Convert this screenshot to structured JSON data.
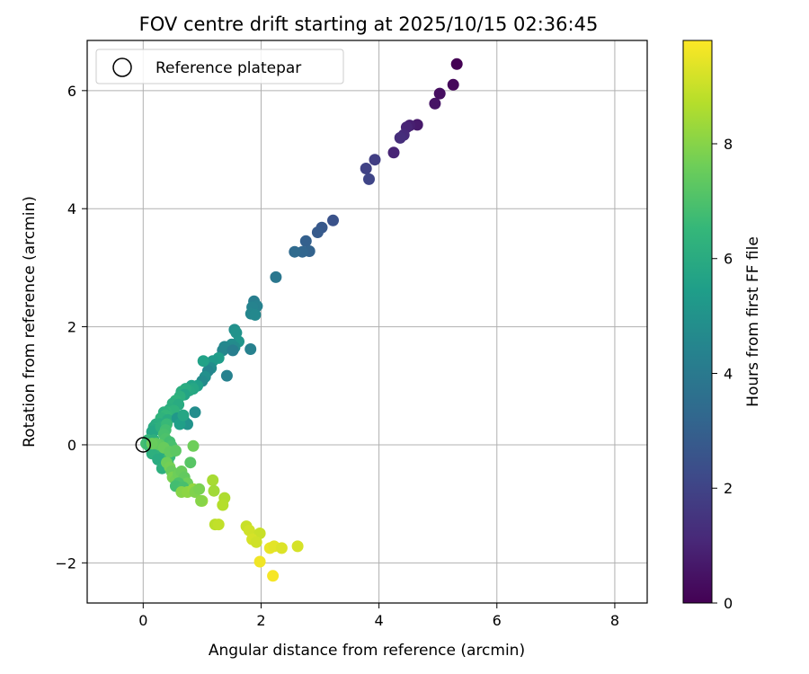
{
  "chart_data": {
    "type": "scatter",
    "title": "FOV centre drift starting at 2025/10/15 02:36:45",
    "xlabel": "Angular distance from reference (arcmin)",
    "ylabel": "Rotation from reference (arcmin)",
    "xlim": [
      -0.95,
      8.55
    ],
    "ylim": [
      -2.68,
      6.85
    ],
    "xticks": [
      0,
      2,
      4,
      6,
      8
    ],
    "xtick_labels": [
      "0",
      "2",
      "4",
      "6",
      "8"
    ],
    "yticks": [
      -2,
      0,
      2,
      4,
      6
    ],
    "ytick_labels": [
      "−2",
      "0",
      "2",
      "4",
      "6"
    ],
    "grid": true,
    "legend": {
      "position": "top-left",
      "entries": [
        "Reference platepar"
      ]
    },
    "reference_point": {
      "x": 0,
      "y": 0
    },
    "colorbar": {
      "label": "Hours from first FF file",
      "range": [
        0,
        9.8
      ],
      "ticks": [
        0,
        2,
        4,
        6,
        8
      ],
      "tick_labels": [
        "0",
        "2",
        "4",
        "6",
        "8"
      ],
      "colormap": "viridis",
      "stops": [
        "#440154",
        "#482878",
        "#3e4989",
        "#31688e",
        "#26828e",
        "#1f9e89",
        "#35b779",
        "#6ece58",
        "#b5de2b",
        "#fde725"
      ]
    },
    "points": [
      [
        5.32,
        6.45,
        0.0
      ],
      [
        5.26,
        6.1,
        0.2
      ],
      [
        5.03,
        5.95,
        0.35
      ],
      [
        4.95,
        5.78,
        0.5
      ],
      [
        4.65,
        5.42,
        0.7
      ],
      [
        4.52,
        5.41,
        0.85
      ],
      [
        4.47,
        5.38,
        1.0
      ],
      [
        4.42,
        5.25,
        1.15
      ],
      [
        4.36,
        5.2,
        1.3
      ],
      [
        4.25,
        4.95,
        1.0
      ],
      [
        3.93,
        4.83,
        1.8
      ],
      [
        3.78,
        4.68,
        1.95
      ],
      [
        3.83,
        4.5,
        2.05
      ],
      [
        3.22,
        3.8,
        2.5
      ],
      [
        3.03,
        3.68,
        2.7
      ],
      [
        2.96,
        3.6,
        2.8
      ],
      [
        2.76,
        3.45,
        3.0
      ],
      [
        2.82,
        3.28,
        3.1
      ],
      [
        2.7,
        3.27,
        3.2
      ],
      [
        2.57,
        3.27,
        3.4
      ],
      [
        2.25,
        2.84,
        3.9
      ],
      [
        1.88,
        2.43,
        4.2
      ],
      [
        1.93,
        2.35,
        4.3
      ],
      [
        1.85,
        2.33,
        4.4
      ],
      [
        1.83,
        2.22,
        4.5
      ],
      [
        1.9,
        2.2,
        4.6
      ],
      [
        1.82,
        1.62,
        4.3
      ],
      [
        1.55,
        1.95,
        4.9
      ],
      [
        1.58,
        1.9,
        5.0
      ],
      [
        1.62,
        1.75,
        5.1
      ],
      [
        1.5,
        1.7,
        4.8
      ],
      [
        1.55,
        1.65,
        4.7
      ],
      [
        1.38,
        1.66,
        4.6
      ],
      [
        1.35,
        1.6,
        4.5
      ],
      [
        1.52,
        1.6,
        4.2
      ],
      [
        1.28,
        1.47,
        5.4
      ],
      [
        1.18,
        1.42,
        5.3
      ],
      [
        1.15,
        1.3,
        4.8
      ],
      [
        1.1,
        1.25,
        4.5
      ],
      [
        1.42,
        1.17,
        4.3
      ],
      [
        1.02,
        1.42,
        5.6
      ],
      [
        1.05,
        1.15,
        4.9
      ],
      [
        1.0,
        1.08,
        4.7
      ],
      [
        0.92,
        1.0,
        5.5
      ],
      [
        0.82,
        1.0,
        5.6
      ],
      [
        0.85,
        0.95,
        5.8
      ],
      [
        0.78,
        0.92,
        5.9
      ],
      [
        0.72,
        0.95,
        6.0
      ],
      [
        0.65,
        0.9,
        6.1
      ],
      [
        0.7,
        0.85,
        5.7
      ],
      [
        0.62,
        0.82,
        6.2
      ],
      [
        0.55,
        0.75,
        6.3
      ],
      [
        0.5,
        0.7,
        6.2
      ],
      [
        0.6,
        0.68,
        6.0
      ],
      [
        0.45,
        0.6,
        6.1
      ],
      [
        0.52,
        0.58,
        6.3
      ],
      [
        0.4,
        0.55,
        6.4
      ],
      [
        0.35,
        0.55,
        6.2
      ],
      [
        0.38,
        0.5,
        6.5
      ],
      [
        0.3,
        0.45,
        6.3
      ],
      [
        0.42,
        0.42,
        6.0
      ],
      [
        0.58,
        0.45,
        5.2
      ],
      [
        0.7,
        0.4,
        5.4
      ],
      [
        0.75,
        0.35,
        5.0
      ],
      [
        0.88,
        0.55,
        4.8
      ],
      [
        0.62,
        0.35,
        5.5
      ],
      [
        0.68,
        0.5,
        5.8
      ],
      [
        0.28,
        0.35,
        6.0
      ],
      [
        0.22,
        0.35,
        6.1
      ],
      [
        0.18,
        0.3,
        6.0
      ],
      [
        0.25,
        0.28,
        6.3
      ],
      [
        0.2,
        0.25,
        5.9
      ],
      [
        0.15,
        0.22,
        5.8
      ],
      [
        0.3,
        0.3,
        6.2
      ],
      [
        0.4,
        0.35,
        6.6
      ],
      [
        0.38,
        0.25,
        6.8
      ],
      [
        0.35,
        0.18,
        6.9
      ],
      [
        0.38,
        0.1,
        7.0
      ],
      [
        0.4,
        0.0,
        7.1
      ],
      [
        0.45,
        0.05,
        6.8
      ],
      [
        0.48,
        -0.02,
        6.9
      ],
      [
        0.08,
        0.08,
        6.5
      ],
      [
        0.05,
        0.02,
        6.8
      ],
      [
        0.1,
        -0.02,
        6.7
      ],
      [
        0.12,
        0.05,
        6.6
      ],
      [
        0.18,
        0.08,
        6.2
      ],
      [
        0.2,
        -0.05,
        6.4
      ],
      [
        0.25,
        -0.1,
        6.3
      ],
      [
        0.15,
        -0.15,
        6.2
      ],
      [
        0.35,
        -0.2,
        6.1
      ],
      [
        0.25,
        -0.25,
        6.0
      ],
      [
        0.32,
        -0.4,
        6.2
      ],
      [
        0.42,
        -0.3,
        6.4
      ],
      [
        0.45,
        -0.2,
        6.6
      ],
      [
        0.28,
        0.0,
        7.3
      ],
      [
        0.22,
        0.02,
        7.4
      ],
      [
        0.15,
        0.02,
        7.5
      ],
      [
        0.35,
        -0.05,
        7.5
      ],
      [
        0.45,
        -0.12,
        7.4
      ],
      [
        0.55,
        -0.1,
        7.3
      ],
      [
        0.85,
        -0.02,
        7.6
      ],
      [
        0.4,
        -0.3,
        7.6
      ],
      [
        0.45,
        -0.38,
        7.7
      ],
      [
        0.48,
        -0.45,
        7.5
      ],
      [
        0.5,
        -0.55,
        7.8
      ],
      [
        0.55,
        -0.6,
        7.7
      ],
      [
        0.6,
        -0.5,
        7.6
      ],
      [
        0.65,
        -0.45,
        7.5
      ],
      [
        0.7,
        -0.55,
        7.4
      ],
      [
        0.75,
        -0.65,
        7.6
      ],
      [
        0.8,
        -0.3,
        7.2
      ],
      [
        0.6,
        -0.65,
        7.0
      ],
      [
        0.55,
        -0.7,
        6.8
      ],
      [
        0.68,
        -0.72,
        6.9
      ],
      [
        0.65,
        -0.8,
        8.0
      ],
      [
        0.75,
        -0.8,
        8.1
      ],
      [
        0.85,
        -0.75,
        8.2
      ],
      [
        0.88,
        -0.8,
        7.9
      ],
      [
        0.95,
        -0.75,
        7.8
      ],
      [
        1.0,
        -0.95,
        8.3
      ],
      [
        0.98,
        -0.95,
        8.0
      ],
      [
        1.18,
        -0.6,
        8.5
      ],
      [
        1.2,
        -0.78,
        8.4
      ],
      [
        1.38,
        -0.9,
        8.6
      ],
      [
        1.35,
        -1.02,
        8.7
      ],
      [
        1.22,
        -1.35,
        8.8
      ],
      [
        1.28,
        -1.35,
        8.9
      ],
      [
        1.75,
        -1.38,
        9.0
      ],
      [
        1.8,
        -1.45,
        9.1
      ],
      [
        1.98,
        -1.5,
        9.0
      ],
      [
        1.85,
        -1.6,
        9.2
      ],
      [
        1.92,
        -1.65,
        9.1
      ],
      [
        2.15,
        -1.75,
        9.5
      ],
      [
        2.22,
        -1.72,
        9.4
      ],
      [
        2.35,
        -1.75,
        9.3
      ],
      [
        2.62,
        -1.72,
        9.2
      ],
      [
        1.98,
        -1.98,
        9.6
      ],
      [
        2.2,
        -2.22,
        9.7
      ]
    ]
  }
}
